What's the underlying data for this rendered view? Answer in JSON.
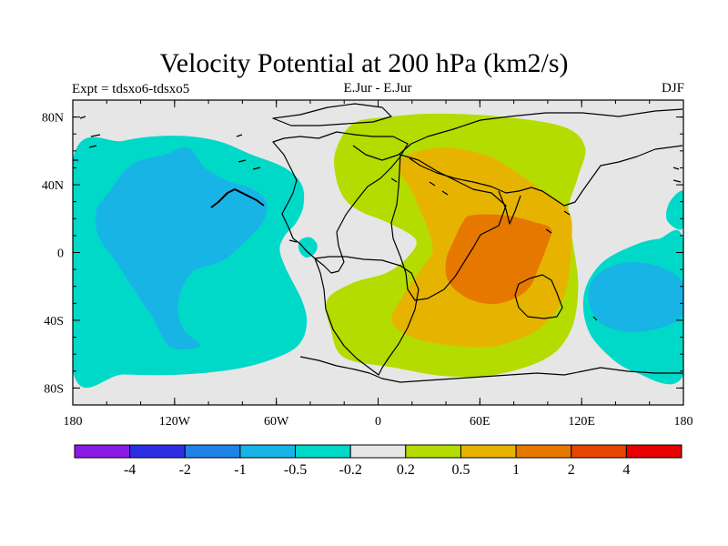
{
  "chart_data": {
    "type": "map",
    "title": "Velocity Potential at 200 hPa (km2/s)",
    "subtitle_left": "Expt = tdsxo6-tdsxo5",
    "subtitle_center": "E.Jur - E.Jur",
    "subtitle_right": "DJF",
    "x_ticks": [
      {
        "value": -180,
        "label": "180"
      },
      {
        "value": -120,
        "label": "120W"
      },
      {
        "value": -60,
        "label": "60W"
      },
      {
        "value": 0,
        "label": "0"
      },
      {
        "value": 60,
        "label": "60E"
      },
      {
        "value": 120,
        "label": "120E"
      },
      {
        "value": 180,
        "label": "180"
      }
    ],
    "y_ticks": [
      {
        "value": 80,
        "label": "80N"
      },
      {
        "value": 40,
        "label": "40N"
      },
      {
        "value": 0,
        "label": "0"
      },
      {
        "value": -40,
        "label": "40S"
      },
      {
        "value": -80,
        "label": "80S"
      }
    ],
    "xlim": [
      -180,
      180
    ],
    "ylim": [
      -90,
      90
    ],
    "contour_levels": [
      "-4",
      "-2",
      "-1",
      "-0.5",
      "-0.2",
      "0.2",
      "0.5",
      "1",
      "2",
      "4"
    ],
    "level_colors": [
      "#8a1ae6",
      "#2d2de6",
      "#1e82e6",
      "#18b4e6",
      "#00d9c8",
      "#e6e6e6",
      "#b4dc00",
      "#e6b400",
      "#e67800",
      "#e64600",
      "#e60000"
    ],
    "background_color": "#e6e6e6",
    "regions": [
      {
        "name": "pacific-negative-outer",
        "level_index": 4,
        "points": [
          [
            -180,
            55
          ],
          [
            -150,
            66
          ],
          [
            -120,
            69
          ],
          [
            -95,
            66
          ],
          [
            -75,
            58
          ],
          [
            -55,
            50
          ],
          [
            -45,
            40
          ],
          [
            -44,
            28
          ],
          [
            -48,
            18
          ],
          [
            -55,
            10
          ],
          [
            -58,
            2
          ],
          [
            -55,
            -8
          ],
          [
            -50,
            -18
          ],
          [
            -45,
            -28
          ],
          [
            -42,
            -40
          ],
          [
            -45,
            -52
          ],
          [
            -55,
            -60
          ],
          [
            -80,
            -68
          ],
          [
            -115,
            -72
          ],
          [
            -150,
            -72
          ],
          [
            -180,
            -70
          ]
        ]
      },
      {
        "name": "pacific-negative-inner",
        "level_index": 3,
        "points": [
          [
            -160,
            34
          ],
          [
            -145,
            52
          ],
          [
            -125,
            58
          ],
          [
            -112,
            62
          ],
          [
            -102,
            50
          ],
          [
            -88,
            42
          ],
          [
            -75,
            38
          ],
          [
            -66,
            30
          ],
          [
            -68,
            18
          ],
          [
            -80,
            5
          ],
          [
            -92,
            -5
          ],
          [
            -110,
            -12
          ],
          [
            -118,
            -30
          ],
          [
            -115,
            -45
          ],
          [
            -105,
            -55
          ],
          [
            -122,
            -56
          ],
          [
            -132,
            -40
          ],
          [
            -142,
            -25
          ],
          [
            -155,
            -5
          ],
          [
            -165,
            10
          ],
          [
            -166,
            25
          ]
        ]
      },
      {
        "name": "dateline-negative-outer",
        "level_index": 4,
        "points": [
          [
            180,
            -72
          ],
          [
            150,
            -70
          ],
          [
            130,
            -55
          ],
          [
            122,
            -40
          ],
          [
            122,
            -22
          ],
          [
            132,
            -6
          ],
          [
            150,
            4
          ],
          [
            165,
            8
          ],
          [
            180,
            7
          ]
        ]
      },
      {
        "name": "dateline-negative-inner",
        "level_index": 3,
        "points": [
          [
            145,
            -6
          ],
          [
            128,
            -14
          ],
          [
            124,
            -28
          ],
          [
            132,
            -42
          ],
          [
            150,
            -47
          ],
          [
            168,
            -44
          ],
          [
            180,
            -36
          ],
          [
            180,
            -18
          ],
          [
            165,
            -8
          ]
        ]
      },
      {
        "name": "east-edge-negative",
        "level_index": 4,
        "points": [
          [
            180,
            36
          ],
          [
            172,
            30
          ],
          [
            170,
            20
          ],
          [
            176,
            14
          ],
          [
            180,
            16
          ]
        ]
      },
      {
        "name": "small-negative-blob",
        "level_index": 4,
        "points": [
          [
            -45,
            8
          ],
          [
            -40,
            9
          ],
          [
            -36,
            5
          ],
          [
            -37,
            0
          ],
          [
            -42,
            -3
          ],
          [
            -46,
            0
          ],
          [
            -47,
            5
          ]
        ]
      },
      {
        "name": "west-edge-negative",
        "level_index": 4,
        "points": [
          [
            -180,
            14
          ],
          [
            -175,
            10
          ],
          [
            -174,
            4
          ],
          [
            -180,
            2
          ]
        ]
      },
      {
        "name": "positive-outer",
        "level_index": 6,
        "points": [
          [
            -15,
            76
          ],
          [
            5,
            80
          ],
          [
            35,
            82
          ],
          [
            75,
            80
          ],
          [
            110,
            74
          ],
          [
            122,
            62
          ],
          [
            118,
            45
          ],
          [
            112,
            25
          ],
          [
            115,
            5
          ],
          [
            118,
            -20
          ],
          [
            114,
            -45
          ],
          [
            100,
            -62
          ],
          [
            70,
            -72
          ],
          [
            40,
            -73
          ],
          [
            10,
            -68
          ],
          [
            -20,
            -62
          ],
          [
            -28,
            -45
          ],
          [
            -30,
            -28
          ],
          [
            -15,
            -18
          ],
          [
            5,
            -12
          ],
          [
            18,
            -2
          ],
          [
            22,
            8
          ],
          [
            5,
            18
          ],
          [
            -10,
            24
          ],
          [
            -20,
            32
          ],
          [
            -25,
            45
          ],
          [
            -25,
            60
          ]
        ]
      },
      {
        "name": "positive-middle",
        "level_index": 7,
        "points": [
          [
            18,
            58
          ],
          [
            40,
            62
          ],
          [
            65,
            57
          ],
          [
            82,
            47
          ],
          [
            95,
            38
          ],
          [
            112,
            25
          ],
          [
            114,
            5
          ],
          [
            110,
            -25
          ],
          [
            95,
            -45
          ],
          [
            70,
            -55
          ],
          [
            45,
            -55
          ],
          [
            20,
            -50
          ],
          [
            8,
            -40
          ],
          [
            15,
            -25
          ],
          [
            25,
            -10
          ],
          [
            32,
            0
          ],
          [
            30,
            12
          ],
          [
            25,
            24
          ],
          [
            20,
            36
          ],
          [
            12,
            50
          ]
        ]
      },
      {
        "name": "positive-inner",
        "level_index": 8,
        "points": [
          [
            55,
            22
          ],
          [
            75,
            22
          ],
          [
            92,
            18
          ],
          [
            102,
            14
          ],
          [
            100,
            5
          ],
          [
            95,
            -8
          ],
          [
            88,
            -22
          ],
          [
            72,
            -30
          ],
          [
            55,
            -28
          ],
          [
            42,
            -18
          ],
          [
            40,
            -5
          ],
          [
            45,
            8
          ],
          [
            50,
            18
          ]
        ]
      }
    ]
  }
}
